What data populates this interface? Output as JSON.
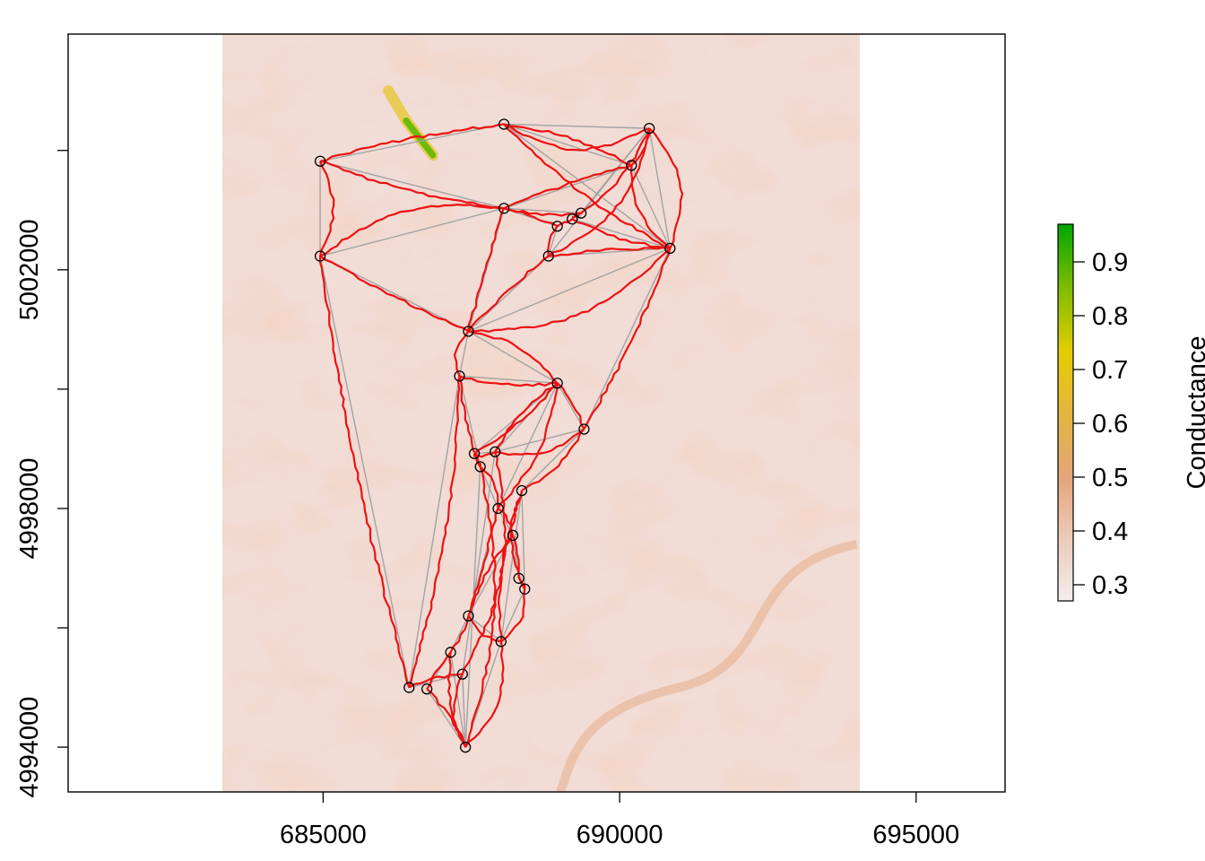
{
  "chart_data": {
    "type": "map-network",
    "title": "",
    "xlabel": "",
    "ylabel": "",
    "xlim": [
      680700,
      696500
    ],
    "ylim": [
      4993250,
      5005950
    ],
    "raster_extent": {
      "x": [
        683300,
        694050
      ],
      "y": [
        4993250,
        5005950
      ]
    },
    "x_ticks": [
      685000,
      690000,
      695000
    ],
    "x_tick_labels": [
      "685000",
      "690000",
      "695000"
    ],
    "y_ticks": [
      4994000,
      4996000,
      4998000,
      5000000,
      5002000,
      5004000
    ],
    "y_tick_labels": [
      "4994000",
      "",
      "4998000",
      "",
      "5002000",
      ""
    ],
    "legend": {
      "title": "Conductance",
      "range": [
        0.27,
        0.97
      ],
      "ticks": [
        0.3,
        0.4,
        0.5,
        0.6,
        0.7,
        0.8,
        0.9
      ],
      "tick_labels": [
        "0.3",
        "0.4",
        "0.5",
        "0.6",
        "0.7",
        "0.8",
        "0.9"
      ],
      "colors": [
        "#f2eded",
        "#ebcab8",
        "#e5a47a",
        "#e4b640",
        "#e4cd00",
        "#7fbd00",
        "#00a600"
      ]
    },
    "colors": {
      "least_cost_path": "#ee1111",
      "straight_link": "#a3a3a3",
      "point": "#000000"
    },
    "points": [
      [
        687400,
        4994000
      ],
      [
        686450,
        4995000
      ],
      [
        686750,
        4994975
      ],
      [
        687350,
        4995225
      ],
      [
        687150,
        4995590
      ],
      [
        688000,
        4995770
      ],
      [
        687450,
        4996200
      ],
      [
        688400,
        4996650
      ],
      [
        688300,
        4996830
      ],
      [
        688200,
        4997550
      ],
      [
        687950,
        4998000
      ],
      [
        688350,
        4998300
      ],
      [
        687650,
        4998700
      ],
      [
        687550,
        4998920
      ],
      [
        687900,
        4998950
      ],
      [
        689400,
        4999330
      ],
      [
        688950,
        5000100
      ],
      [
        687300,
        5000220
      ],
      [
        687450,
        5000970
      ],
      [
        684950,
        5002230
      ],
      [
        688800,
        5002230
      ],
      [
        690850,
        5002360
      ],
      [
        688950,
        5002730
      ],
      [
        689200,
        5002850
      ],
      [
        689350,
        5002950
      ],
      [
        688050,
        5003030
      ],
      [
        684950,
        5003820
      ],
      [
        690200,
        5003750
      ],
      [
        688050,
        5004440
      ],
      [
        690500,
        5004370
      ]
    ],
    "links": [
      [
        0,
        3
      ],
      [
        0,
        4
      ],
      [
        0,
        2
      ],
      [
        1,
        3
      ],
      [
        1,
        17
      ],
      [
        2,
        4
      ],
      [
        4,
        6
      ],
      [
        5,
        7
      ],
      [
        5,
        6
      ],
      [
        6,
        9
      ],
      [
        6,
        10
      ],
      [
        7,
        8
      ],
      [
        7,
        11
      ],
      [
        8,
        9
      ],
      [
        9,
        10
      ],
      [
        10,
        12
      ],
      [
        11,
        15
      ],
      [
        12,
        13
      ],
      [
        13,
        14
      ],
      [
        14,
        15
      ],
      [
        15,
        16
      ],
      [
        16,
        17
      ],
      [
        17,
        18
      ],
      [
        18,
        19
      ],
      [
        18,
        20
      ],
      [
        19,
        26
      ],
      [
        20,
        21
      ],
      [
        20,
        22
      ],
      [
        21,
        23
      ],
      [
        21,
        27
      ],
      [
        22,
        23
      ],
      [
        23,
        24
      ],
      [
        24,
        25
      ],
      [
        25,
        26
      ],
      [
        25,
        27
      ],
      [
        26,
        28
      ],
      [
        27,
        28
      ],
      [
        27,
        29
      ],
      [
        28,
        29
      ],
      [
        0,
        12
      ],
      [
        0,
        5
      ],
      [
        1,
        19
      ],
      [
        3,
        14
      ],
      [
        5,
        11
      ],
      [
        10,
        16
      ],
      [
        12,
        17
      ],
      [
        13,
        16
      ],
      [
        14,
        16
      ],
      [
        16,
        18
      ],
      [
        18,
        21
      ],
      [
        15,
        21
      ],
      [
        21,
        28
      ],
      [
        22,
        25
      ],
      [
        19,
        25
      ],
      [
        18,
        25
      ],
      [
        20,
        29
      ],
      [
        24,
        29
      ],
      [
        21,
        29
      ]
    ],
    "high_conductance_ridge": [
      [
        686100,
        5005000
      ],
      [
        686400,
        5004500
      ],
      [
        686850,
        5003920
      ]
    ]
  }
}
